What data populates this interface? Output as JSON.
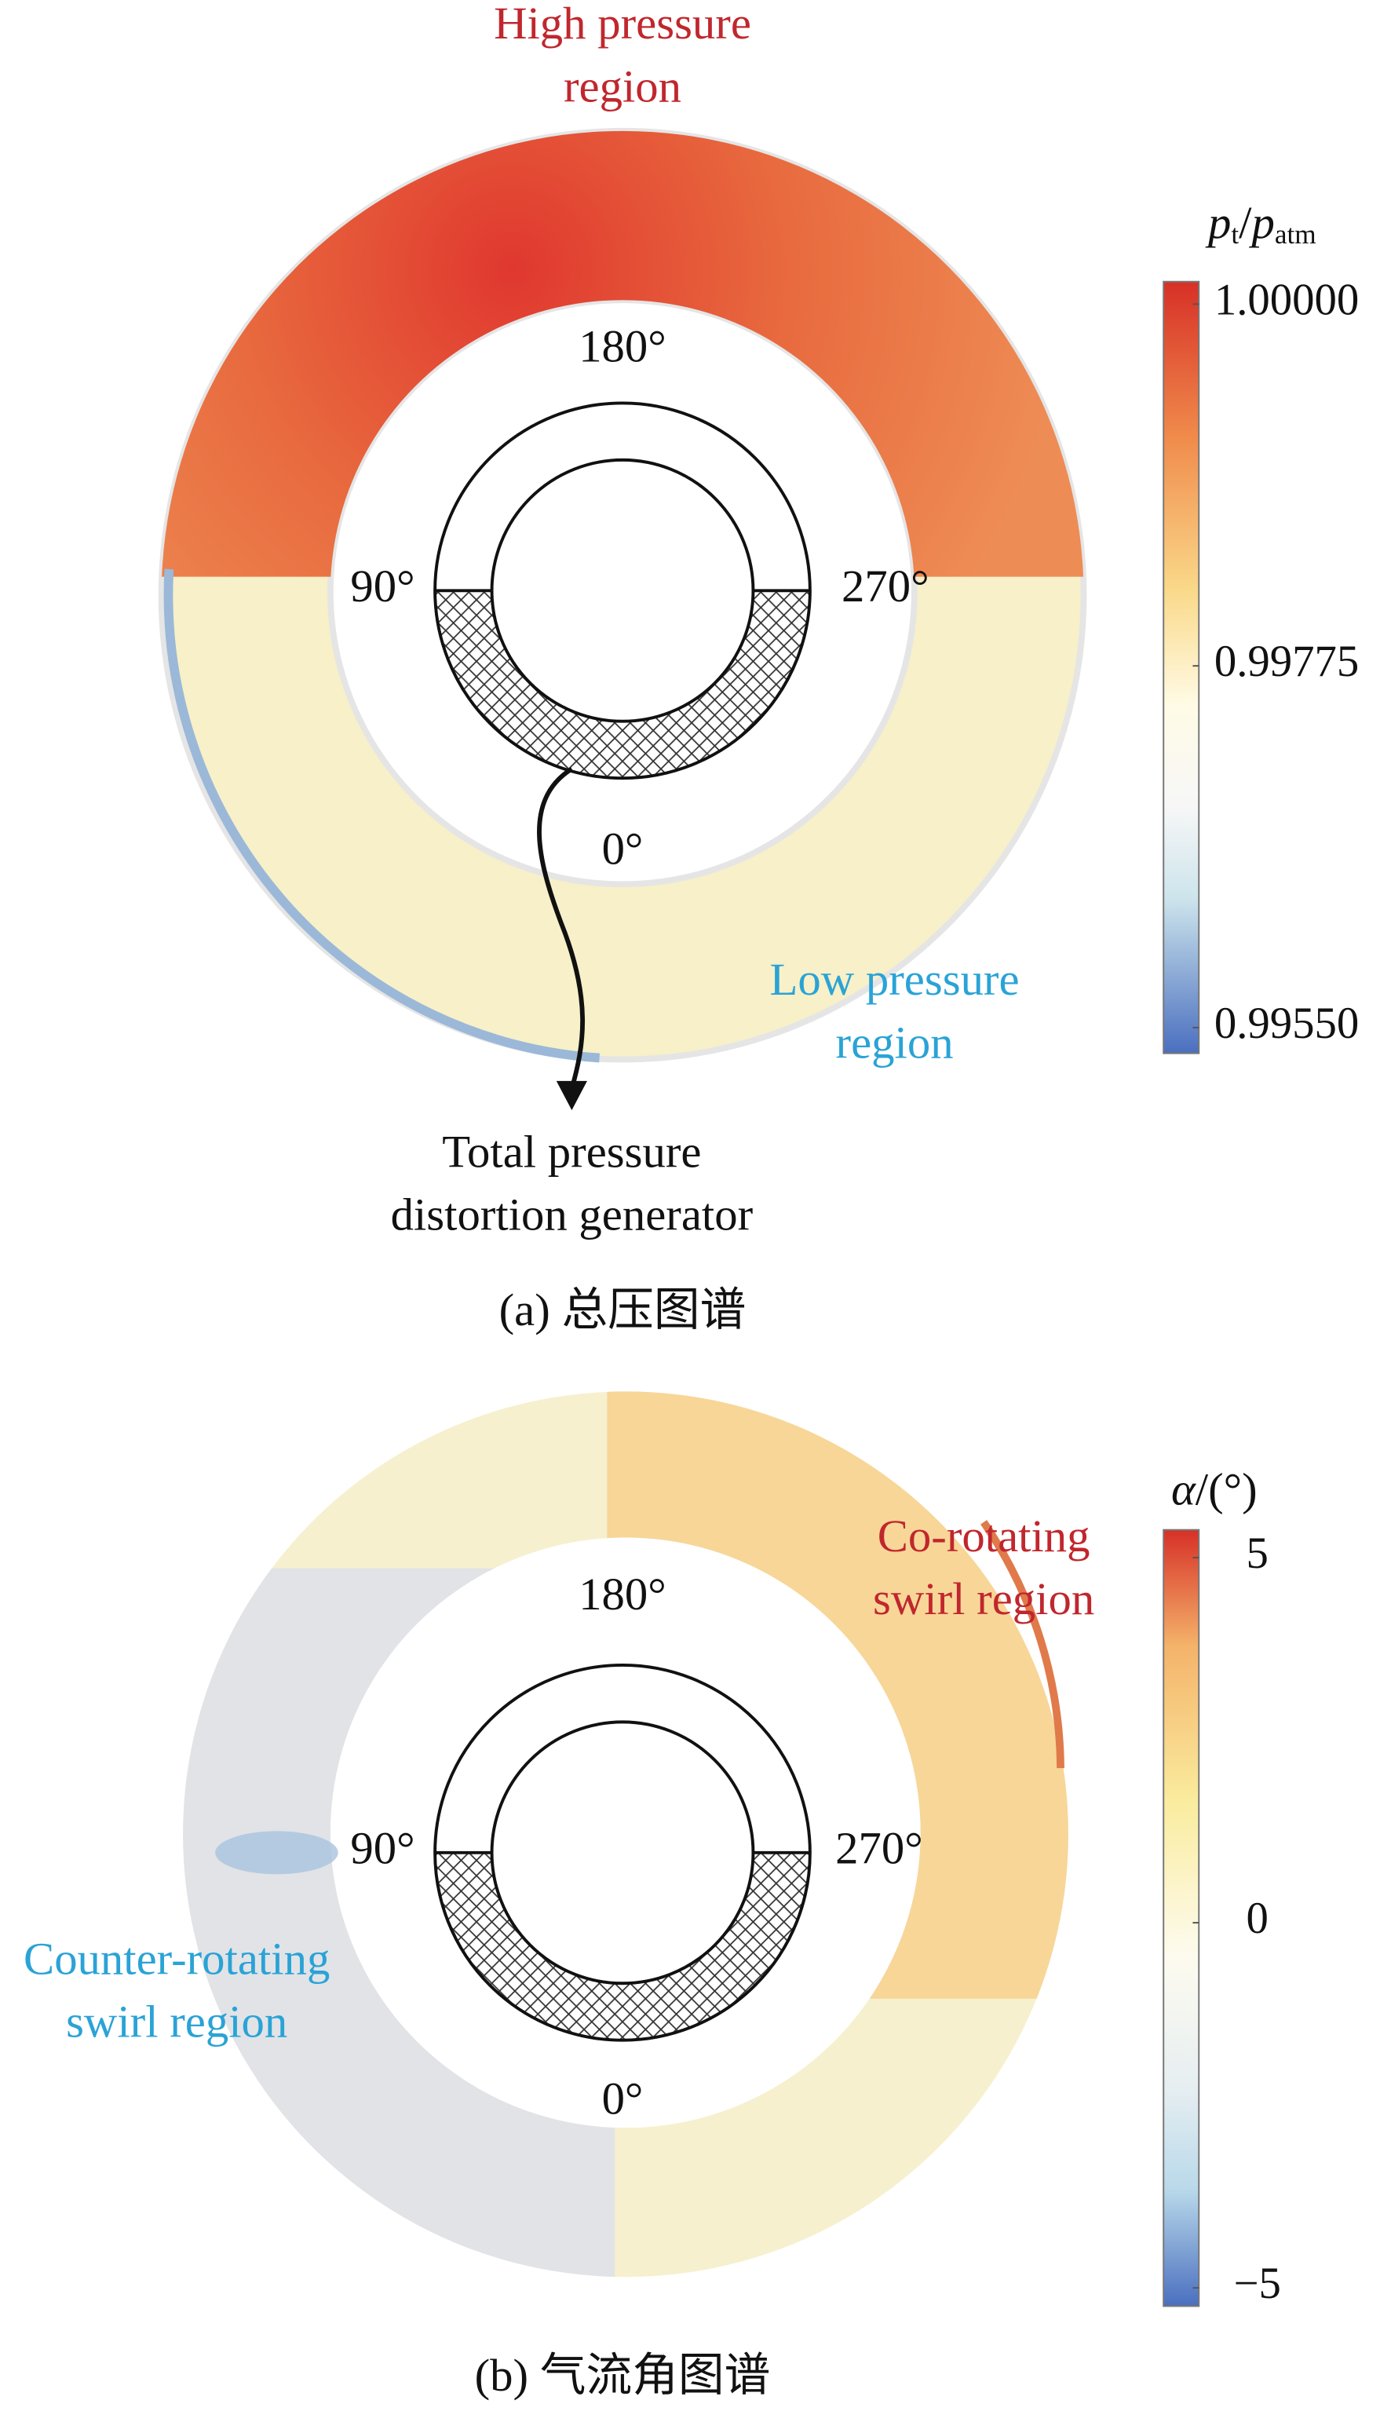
{
  "panels": [
    {
      "caption": "(a) 总压图谱",
      "angles": {
        "top": "180°",
        "left": "90°",
        "right": "270°",
        "bottom": "0°"
      },
      "annotations": {
        "high": [
          "High pressure",
          "region"
        ],
        "low": [
          "Low pressure",
          "region"
        ],
        "generator": [
          "Total pressure",
          "distortion generator"
        ]
      },
      "colorbar": {
        "title": [
          "p",
          "t",
          "/",
          "p",
          "atm"
        ],
        "range": [
          0.99534,
          1.00014
        ],
        "ticks": [
          {
            "value": 1.0,
            "label": "1.00000"
          },
          {
            "value": 0.99775,
            "label": "0.99775"
          },
          {
            "value": 0.9955,
            "label": "0.99550"
          }
        ]
      }
    },
    {
      "caption": "(b) 气流角图谱",
      "angles": {
        "top": "180°",
        "left": "90°",
        "right": "270°",
        "bottom": "0°"
      },
      "annotations": {
        "co": [
          "Co-rotating",
          "swirl region"
        ],
        "counter": [
          "Counter-rotating",
          "swirl region"
        ]
      },
      "colorbar": {
        "title": [
          "α",
          "/(°)"
        ],
        "range": [
          -5.25,
          5.38
        ],
        "ticks": [
          5,
          0,
          {
            "value": -5,
            "label": "−5"
          }
        ]
      }
    }
  ]
}
